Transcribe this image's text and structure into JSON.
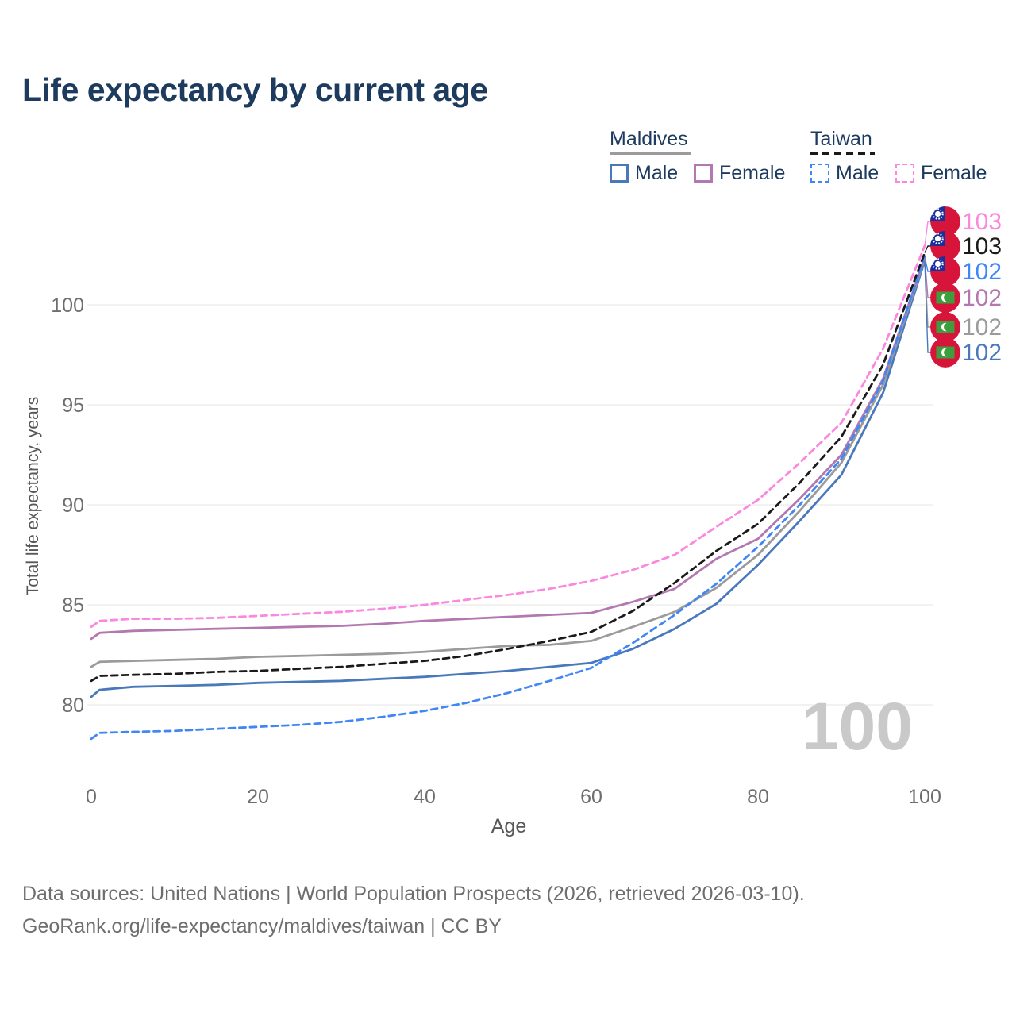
{
  "title": "Life expectancy by current age",
  "legend": {
    "groups": [
      {
        "label": "Maldives",
        "line_style": "solid",
        "underline_color": "#9b9b9b",
        "items": [
          {
            "label": "Male",
            "color": "#4a79bb",
            "dashed": false
          },
          {
            "label": "Female",
            "color": "#b278af",
            "dashed": false
          }
        ]
      },
      {
        "label": "Taiwan",
        "line_style": "dashed",
        "underline_color": "#1a1a1a",
        "items": [
          {
            "label": "Male",
            "color": "#3f86f6",
            "dashed": true
          },
          {
            "label": "Female",
            "color": "#fb87de",
            "dashed": true
          }
        ]
      }
    ]
  },
  "chart_data": {
    "type": "line",
    "title": "Life expectancy by current age",
    "xlabel": "Age",
    "ylabel": "Total life expectancy, years",
    "watermark": "100",
    "x_ticks": [
      0,
      20,
      40,
      60,
      80,
      100
    ],
    "y_ticks": [
      80,
      85,
      90,
      95,
      100
    ],
    "xlim": [
      0,
      100
    ],
    "ylim": [
      77.5,
      104
    ],
    "grid": "horizontal",
    "x": [
      0,
      1,
      5,
      10,
      15,
      20,
      25,
      30,
      35,
      40,
      45,
      50,
      55,
      60,
      65,
      70,
      75,
      80,
      85,
      90,
      95,
      100
    ],
    "series": [
      {
        "name": "Maldives Male",
        "country": "Maldives",
        "sex": "Male",
        "color": "#4a79bb",
        "dashed": false,
        "flag": "maldives",
        "end_label": "102",
        "values": [
          80.4,
          80.75,
          80.9,
          80.95,
          81.0,
          81.1,
          81.15,
          81.2,
          81.3,
          81.4,
          81.55,
          81.7,
          81.9,
          82.1,
          82.8,
          83.8,
          85.05,
          87.0,
          89.2,
          91.5,
          95.6,
          102.2
        ]
      },
      {
        "name": "Maldives Total",
        "country": "Maldives",
        "sex": "Total",
        "color": "#9b9b9b",
        "dashed": false,
        "flag": "maldives",
        "end_label": "102",
        "values": [
          81.9,
          82.15,
          82.2,
          82.25,
          82.3,
          82.4,
          82.45,
          82.5,
          82.55,
          82.65,
          82.8,
          82.95,
          83.0,
          83.2,
          83.9,
          84.65,
          85.85,
          87.5,
          89.7,
          92.1,
          96.0,
          102.3
        ]
      },
      {
        "name": "Maldives Female",
        "country": "Maldives",
        "sex": "Female",
        "color": "#b278af",
        "dashed": false,
        "flag": "maldives",
        "end_label": "102",
        "values": [
          83.3,
          83.6,
          83.7,
          83.75,
          83.8,
          83.85,
          83.9,
          83.95,
          84.05,
          84.2,
          84.3,
          84.4,
          84.5,
          84.6,
          85.15,
          85.8,
          87.3,
          88.3,
          90.3,
          92.5,
          96.3,
          102.35
        ]
      },
      {
        "name": "Taiwan Male",
        "country": "Taiwan",
        "sex": "Male",
        "color": "#3f86f6",
        "dashed": true,
        "flag": "taiwan",
        "end_label": "102",
        "values": [
          78.3,
          78.6,
          78.65,
          78.7,
          78.8,
          78.9,
          79.0,
          79.15,
          79.4,
          79.7,
          80.1,
          80.6,
          81.2,
          81.85,
          83.1,
          84.5,
          86.05,
          87.9,
          90.0,
          92.3,
          96.2,
          102.4
        ]
      },
      {
        "name": "Taiwan Total",
        "country": "Taiwan",
        "sex": "Total",
        "color": "#1a1a1a",
        "dashed": true,
        "flag": "taiwan",
        "end_label": "103",
        "values": [
          81.2,
          81.45,
          81.5,
          81.55,
          81.65,
          81.7,
          81.8,
          81.9,
          82.05,
          82.2,
          82.45,
          82.8,
          83.2,
          83.65,
          84.7,
          86.1,
          87.7,
          89.05,
          91.1,
          93.4,
          97.0,
          102.6
        ]
      },
      {
        "name": "Taiwan Female",
        "country": "Taiwan",
        "sex": "Female",
        "color": "#fb87de",
        "dashed": true,
        "flag": "taiwan",
        "end_label": "103",
        "values": [
          83.9,
          84.2,
          84.3,
          84.3,
          84.35,
          84.45,
          84.55,
          84.65,
          84.8,
          85.0,
          85.25,
          85.5,
          85.8,
          86.2,
          86.75,
          87.5,
          88.9,
          90.25,
          92.1,
          94.1,
          97.8,
          102.95
        ]
      }
    ]
  },
  "footer": {
    "line1": "Data sources: United Nations | World Population Prospects (2026, retrieved 2026-03-10).",
    "line2": "GeoRank.org/life-expectancy/maldives/taiwan | CC BY"
  }
}
